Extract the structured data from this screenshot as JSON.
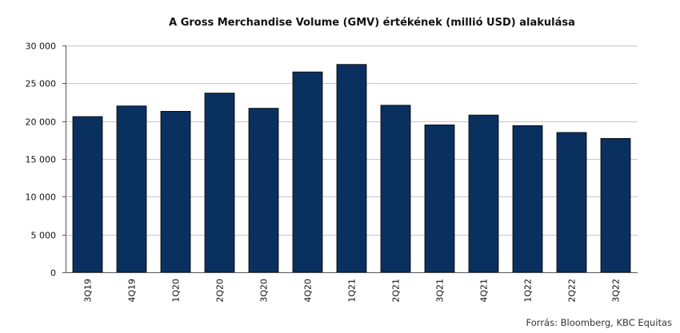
{
  "chart_data": {
    "type": "bar",
    "title": "A Gross Merchandise Volume (GMV) értékének (millió USD) alakulása",
    "categories": [
      "3Q19",
      "4Q19",
      "1Q20",
      "2Q20",
      "3Q20",
      "4Q20",
      "1Q21",
      "2Q21",
      "3Q21",
      "4Q21",
      "1Q22",
      "2Q22",
      "3Q22"
    ],
    "series": [
      {
        "values": [
          20600,
          22000,
          21300,
          23700,
          21700,
          26500,
          27500,
          22100,
          19500,
          20800,
          19400,
          18500,
          17700
        ]
      }
    ],
    "ylim": [
      0,
      30000
    ],
    "yticks": [
      0,
      5000,
      10000,
      15000,
      20000,
      25000,
      30000
    ],
    "ytick_labels": [
      "0",
      "5 000",
      "10 000",
      "15 000",
      "20 000",
      "25 000",
      "30 000"
    ],
    "xlabel": "",
    "ylabel": "",
    "grid": true,
    "bar_color": "#0a3060",
    "grid_color": "#c8c8c8"
  },
  "source": "Forrás: Bloomberg, KBC Equitas"
}
